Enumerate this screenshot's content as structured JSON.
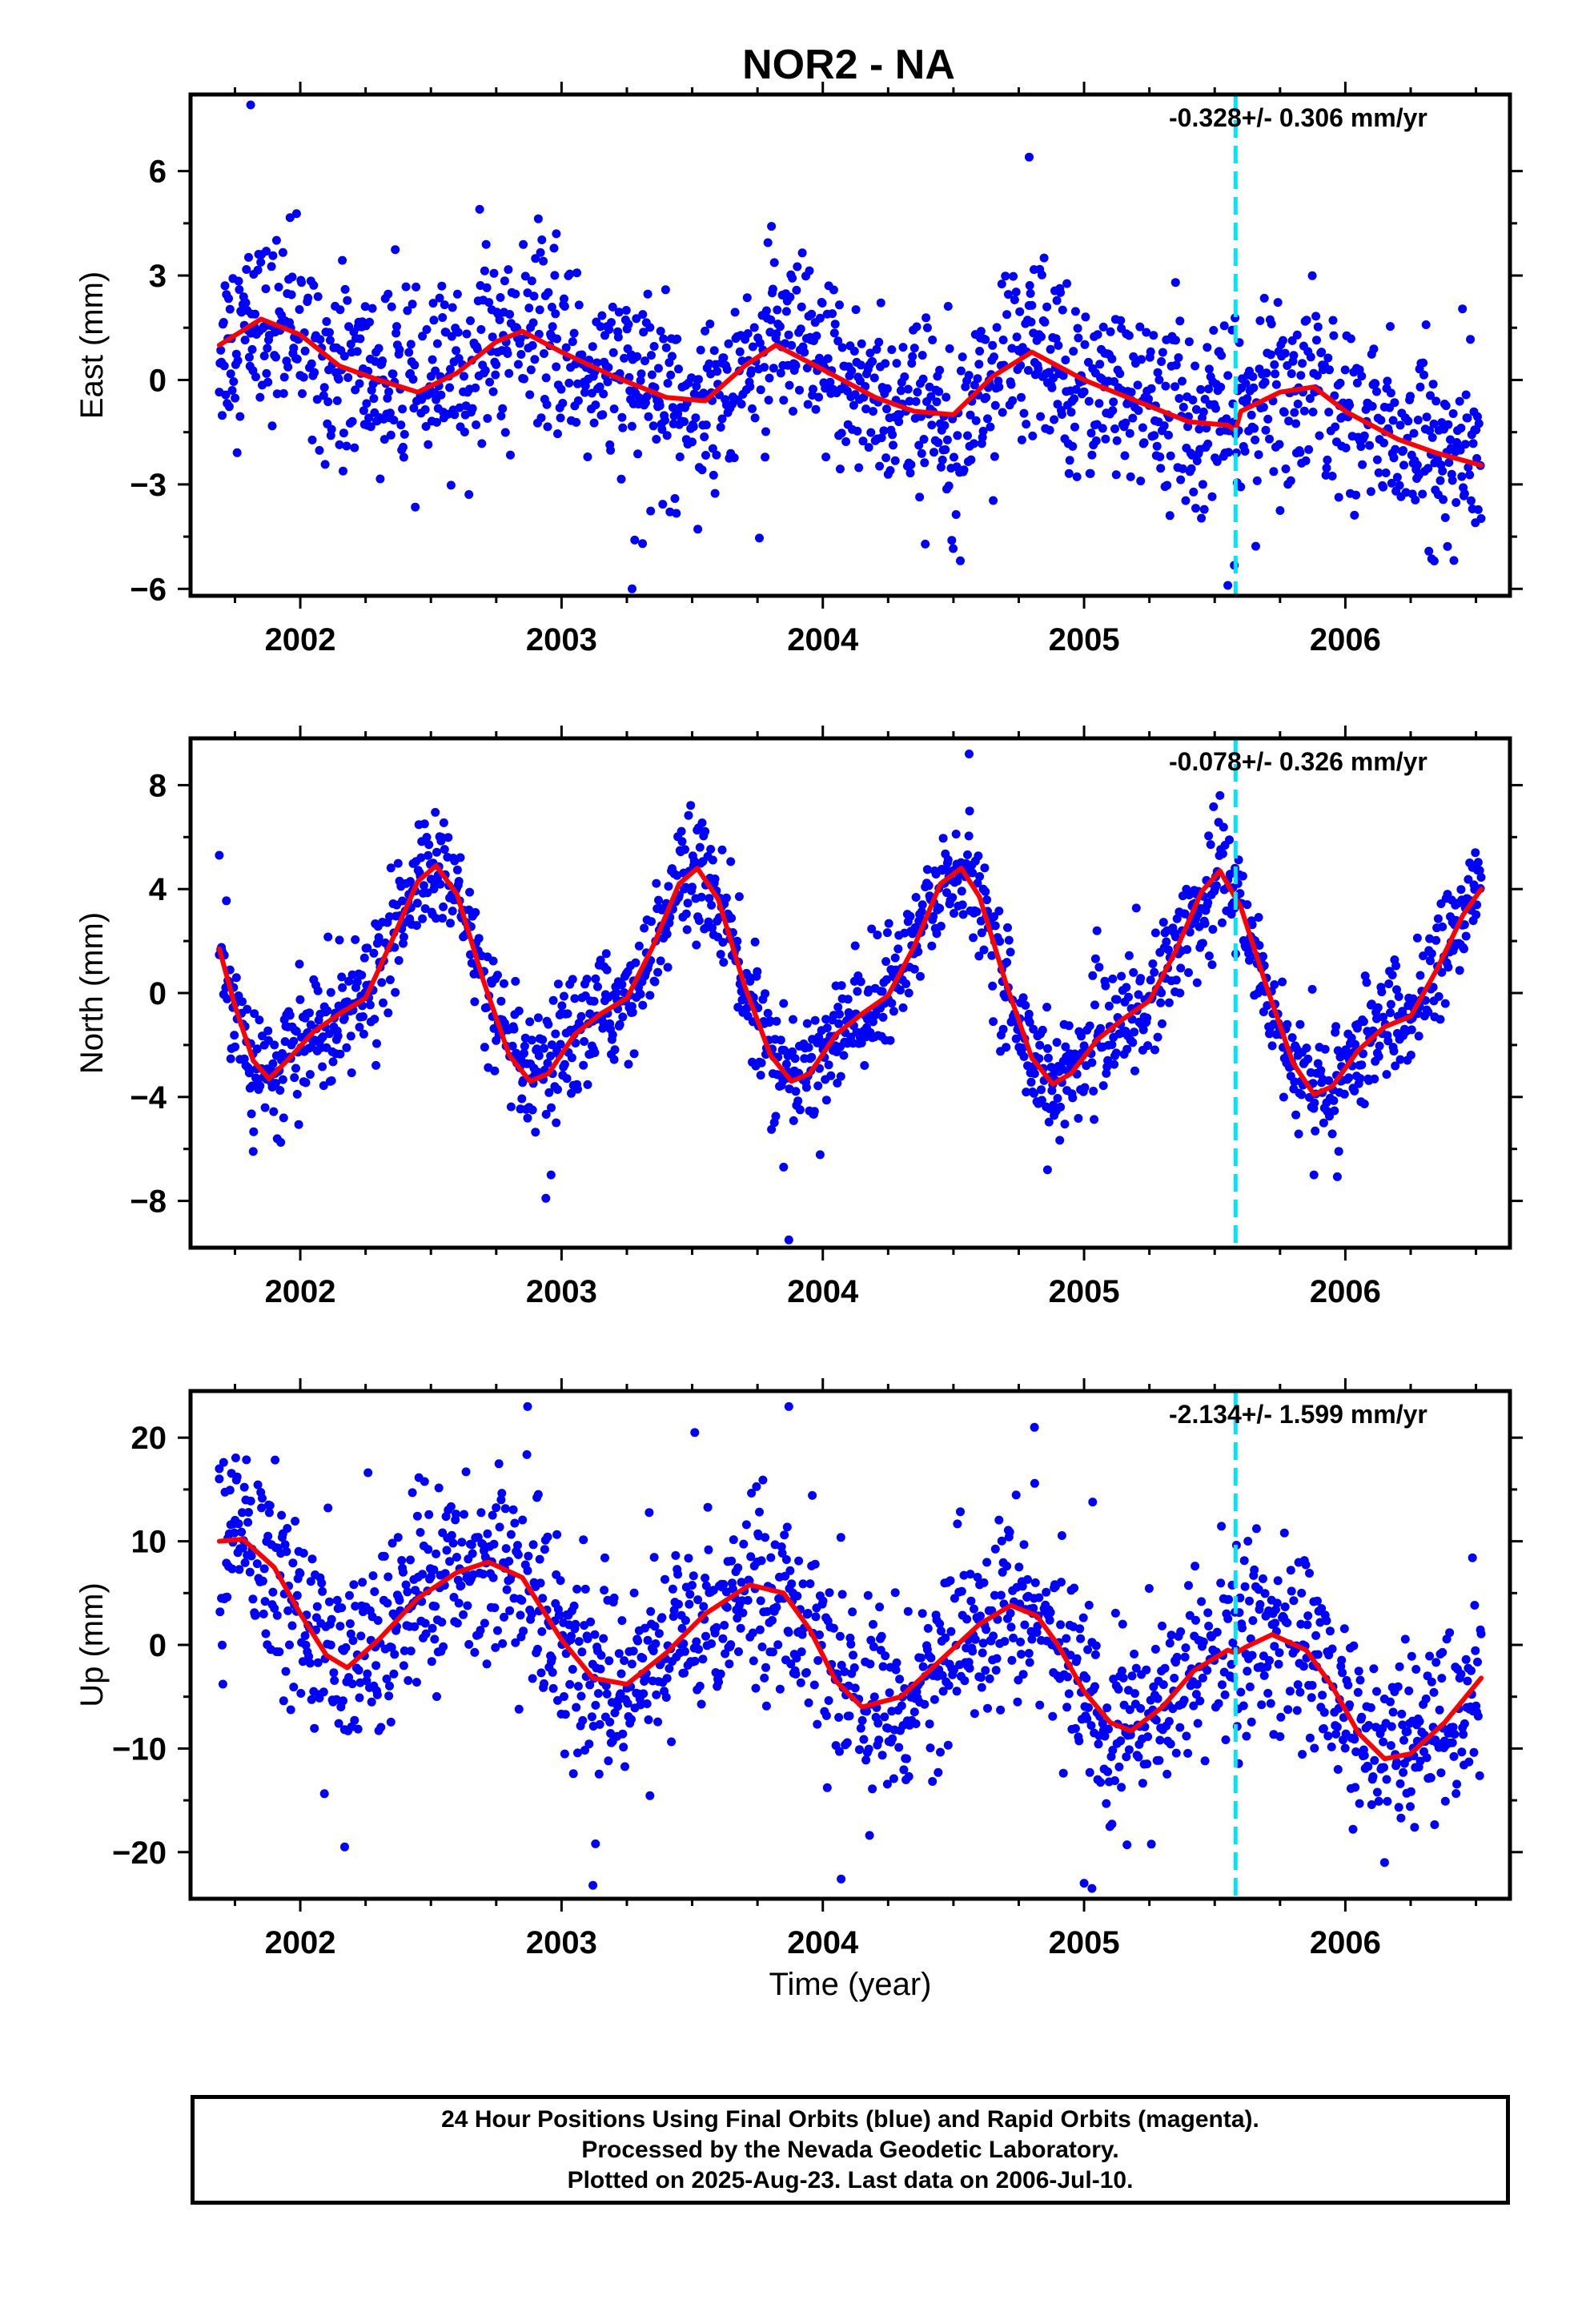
{
  "title": "NOR2 - NA",
  "colors": {
    "final_orbits": "#0000ff",
    "model_fit": "#ff0000",
    "equipment_change": "#00e5ff",
    "frame": "#000000"
  },
  "footer": {
    "line1": "24 Hour Positions Using Final Orbits (blue) and Rapid Orbits (magenta).",
    "line2": "Processed by the Nevada Geodetic Laboratory.",
    "line3": "Plotted on 2025-Aug-23. Last data on 2006-Jul-10."
  },
  "chart_data": [
    {
      "type": "scatter",
      "ylabel": "East (mm)",
      "xlabel": "",
      "rate_label": "-0.328+/- 0.306 mm/yr",
      "xlim": [
        2001.58,
        2006.63
      ],
      "ylim": [
        -6.2,
        8.2
      ],
      "x_ticks": [
        2002,
        2003,
        2004,
        2005,
        2006
      ],
      "y_ticks": [
        -6,
        -3,
        0,
        3,
        6
      ],
      "y_tick_labels": [
        "−6",
        "−3",
        "0",
        "3",
        "6"
      ],
      "grid": false,
      "vertical_line_x": 2005.58,
      "series": [
        {
          "role": "observations",
          "marker": "dot",
          "color": "#0000ff",
          "spread": 1.3,
          "x_range": [
            2001.69,
            2006.52
          ],
          "outliers": [
            [
              2001.81,
              7.9
            ],
            [
              2004.79,
              6.4
            ],
            [
              2003.27,
              -6.0
            ],
            [
              2003.28,
              -4.6
            ],
            [
              2003.31,
              -4.7
            ],
            [
              2001.87,
              3.7
            ],
            [
              2002.98,
              4.2
            ],
            [
              2005.35,
              2.8
            ],
            [
              2006.34,
              -5.2
            ],
            [
              2005.55,
              -5.9
            ]
          ]
        },
        {
          "role": "model",
          "marker": "line",
          "color": "#ff0000",
          "x": [
            2001.69,
            2001.85,
            2002.0,
            2002.15,
            2002.3,
            2002.45,
            2002.6,
            2002.75,
            2002.85,
            2003.0,
            2003.2,
            2003.4,
            2003.55,
            2003.7,
            2003.82,
            2004.0,
            2004.2,
            2004.35,
            2004.5,
            2004.65,
            2004.8,
            2005.0,
            2005.2,
            2005.4,
            2005.55,
            2005.58,
            2005.6,
            2005.75,
            2005.88,
            2006.0,
            2006.2,
            2006.35,
            2006.52
          ],
          "values": [
            1.0,
            1.75,
            1.3,
            0.4,
            0.0,
            -0.35,
            0.2,
            1.1,
            1.4,
            0.8,
            0.1,
            -0.5,
            -0.6,
            0.4,
            1.0,
            0.3,
            -0.5,
            -0.9,
            -1.0,
            0.1,
            0.8,
            0.0,
            -0.6,
            -1.2,
            -1.3,
            -1.45,
            -0.9,
            -0.35,
            -0.2,
            -0.9,
            -1.7,
            -2.1,
            -2.45
          ]
        }
      ]
    },
    {
      "type": "scatter",
      "ylabel": "North (mm)",
      "xlabel": "",
      "rate_label": "-0.078+/- 0.326 mm/yr",
      "xlim": [
        2001.58,
        2006.63
      ],
      "ylim": [
        -9.8,
        9.8
      ],
      "x_ticks": [
        2002,
        2003,
        2004,
        2005,
        2006
      ],
      "y_ticks": [
        -8,
        -4,
        0,
        4,
        8
      ],
      "y_tick_labels": [
        "−8",
        "−4",
        "0",
        "4",
        "8"
      ],
      "grid": false,
      "vertical_line_x": 2005.58,
      "series": [
        {
          "role": "observations",
          "marker": "dot",
          "color": "#0000ff",
          "spread": 1.1,
          "x_range": [
            2001.69,
            2006.52
          ],
          "outliers": [
            [
              2004.56,
              9.2
            ],
            [
              2003.87,
              -9.5
            ],
            [
              2002.94,
              -7.9
            ],
            [
              2003.85,
              -6.7
            ],
            [
              2001.82,
              -6.1
            ],
            [
              2002.96,
              -7.0
            ],
            [
              2005.88,
              -7.0
            ],
            [
              2004.86,
              -6.8
            ],
            [
              2001.69,
              5.3
            ],
            [
              2005.52,
              7.6
            ]
          ]
        },
        {
          "role": "model",
          "marker": "line",
          "color": "#ff0000",
          "x": [
            2001.69,
            2001.75,
            2001.82,
            2001.88,
            2001.95,
            2002.05,
            2002.15,
            2002.25,
            2002.35,
            2002.45,
            2002.52,
            2002.6,
            2002.7,
            2002.8,
            2002.88,
            2002.95,
            2003.05,
            2003.15,
            2003.25,
            2003.35,
            2003.45,
            2003.52,
            2003.6,
            2003.7,
            2003.8,
            2003.88,
            2003.95,
            2004.05,
            2004.15,
            2004.25,
            2004.35,
            2004.45,
            2004.53,
            2004.6,
            2004.7,
            2004.8,
            2004.88,
            2004.95,
            2005.05,
            2005.15,
            2005.25,
            2005.35,
            2005.45,
            2005.52,
            2005.6,
            2005.7,
            2005.8,
            2005.88,
            2005.95,
            2006.05,
            2006.15,
            2006.25,
            2006.35,
            2006.45,
            2006.52
          ],
          "values": [
            1.7,
            -0.5,
            -2.6,
            -3.3,
            -2.6,
            -1.5,
            -0.8,
            -0.2,
            2.0,
            4.3,
            4.9,
            3.8,
            0.5,
            -2.4,
            -3.4,
            -3.1,
            -1.6,
            -0.8,
            -0.2,
            1.8,
            4.2,
            4.8,
            3.6,
            0.3,
            -2.4,
            -3.4,
            -3.1,
            -1.6,
            -0.8,
            -0.1,
            1.8,
            4.2,
            4.8,
            3.7,
            0.4,
            -2.5,
            -3.5,
            -3.1,
            -1.8,
            -1.0,
            -0.3,
            1.6,
            3.9,
            4.7,
            3.3,
            0.2,
            -2.7,
            -3.9,
            -3.6,
            -2.2,
            -1.3,
            -0.9,
            0.9,
            3.0,
            4.0
          ]
        }
      ]
    },
    {
      "type": "scatter",
      "ylabel": "Up (mm)",
      "xlabel": "Time (year)",
      "rate_label": "-2.134+/- 1.599 mm/yr",
      "xlim": [
        2001.58,
        2006.63
      ],
      "ylim": [
        -24.5,
        24.5
      ],
      "x_ticks": [
        2002,
        2003,
        2004,
        2005,
        2006
      ],
      "y_ticks": [
        -20,
        -10,
        0,
        10,
        20
      ],
      "y_tick_labels": [
        "−20",
        "−10",
        "0",
        "10",
        "20"
      ],
      "grid": false,
      "vertical_line_x": 2005.58,
      "series": [
        {
          "role": "observations",
          "marker": "dot",
          "color": "#0000ff",
          "spread": 4.5,
          "x_range": [
            2001.69,
            2006.52
          ],
          "outliers": [
            [
              2002.87,
              23.0
            ],
            [
              2003.87,
              23.0
            ],
            [
              2004.81,
              21.0
            ],
            [
              2003.12,
              -23.2
            ],
            [
              2004.07,
              -22.6
            ],
            [
              2005.0,
              -23.0
            ],
            [
              2005.03,
              -23.5
            ],
            [
              2002.17,
              -19.5
            ],
            [
              2003.13,
              -19.2
            ],
            [
              2006.15,
              -21.0
            ],
            [
              2001.69,
              17.0
            ],
            [
              2003.51,
              20.5
            ]
          ]
        },
        {
          "role": "model",
          "marker": "line",
          "color": "#ff0000",
          "x": [
            2001.69,
            2001.78,
            2001.9,
            2002.0,
            2002.1,
            2002.18,
            2002.3,
            2002.45,
            2002.6,
            2002.72,
            2002.85,
            2003.0,
            2003.12,
            2003.25,
            2003.4,
            2003.55,
            2003.72,
            2003.85,
            2003.95,
            2004.05,
            2004.15,
            2004.3,
            2004.45,
            2004.6,
            2004.72,
            2004.82,
            2004.9,
            2005.0,
            2005.1,
            2005.18,
            2005.3,
            2005.42,
            2005.55,
            2005.58,
            2005.62,
            2005.72,
            2005.85,
            2005.95,
            2006.05,
            2006.15,
            2006.25,
            2006.38,
            2006.52
          ],
          "values": [
            10.0,
            10.2,
            7.5,
            3.0,
            -1.0,
            -2.2,
            0.5,
            4.5,
            7.0,
            8.0,
            6.5,
            0.5,
            -3.2,
            -3.8,
            -0.8,
            3.0,
            5.8,
            5.0,
            1.5,
            -3.5,
            -6.0,
            -5.0,
            -1.5,
            2.0,
            3.8,
            2.8,
            0.0,
            -4.5,
            -7.5,
            -8.3,
            -6.0,
            -2.5,
            -0.5,
            -0.8,
            -0.2,
            1.0,
            -0.5,
            -4.0,
            -8.5,
            -11.0,
            -10.5,
            -7.5,
            -3.2
          ]
        }
      ]
    }
  ]
}
